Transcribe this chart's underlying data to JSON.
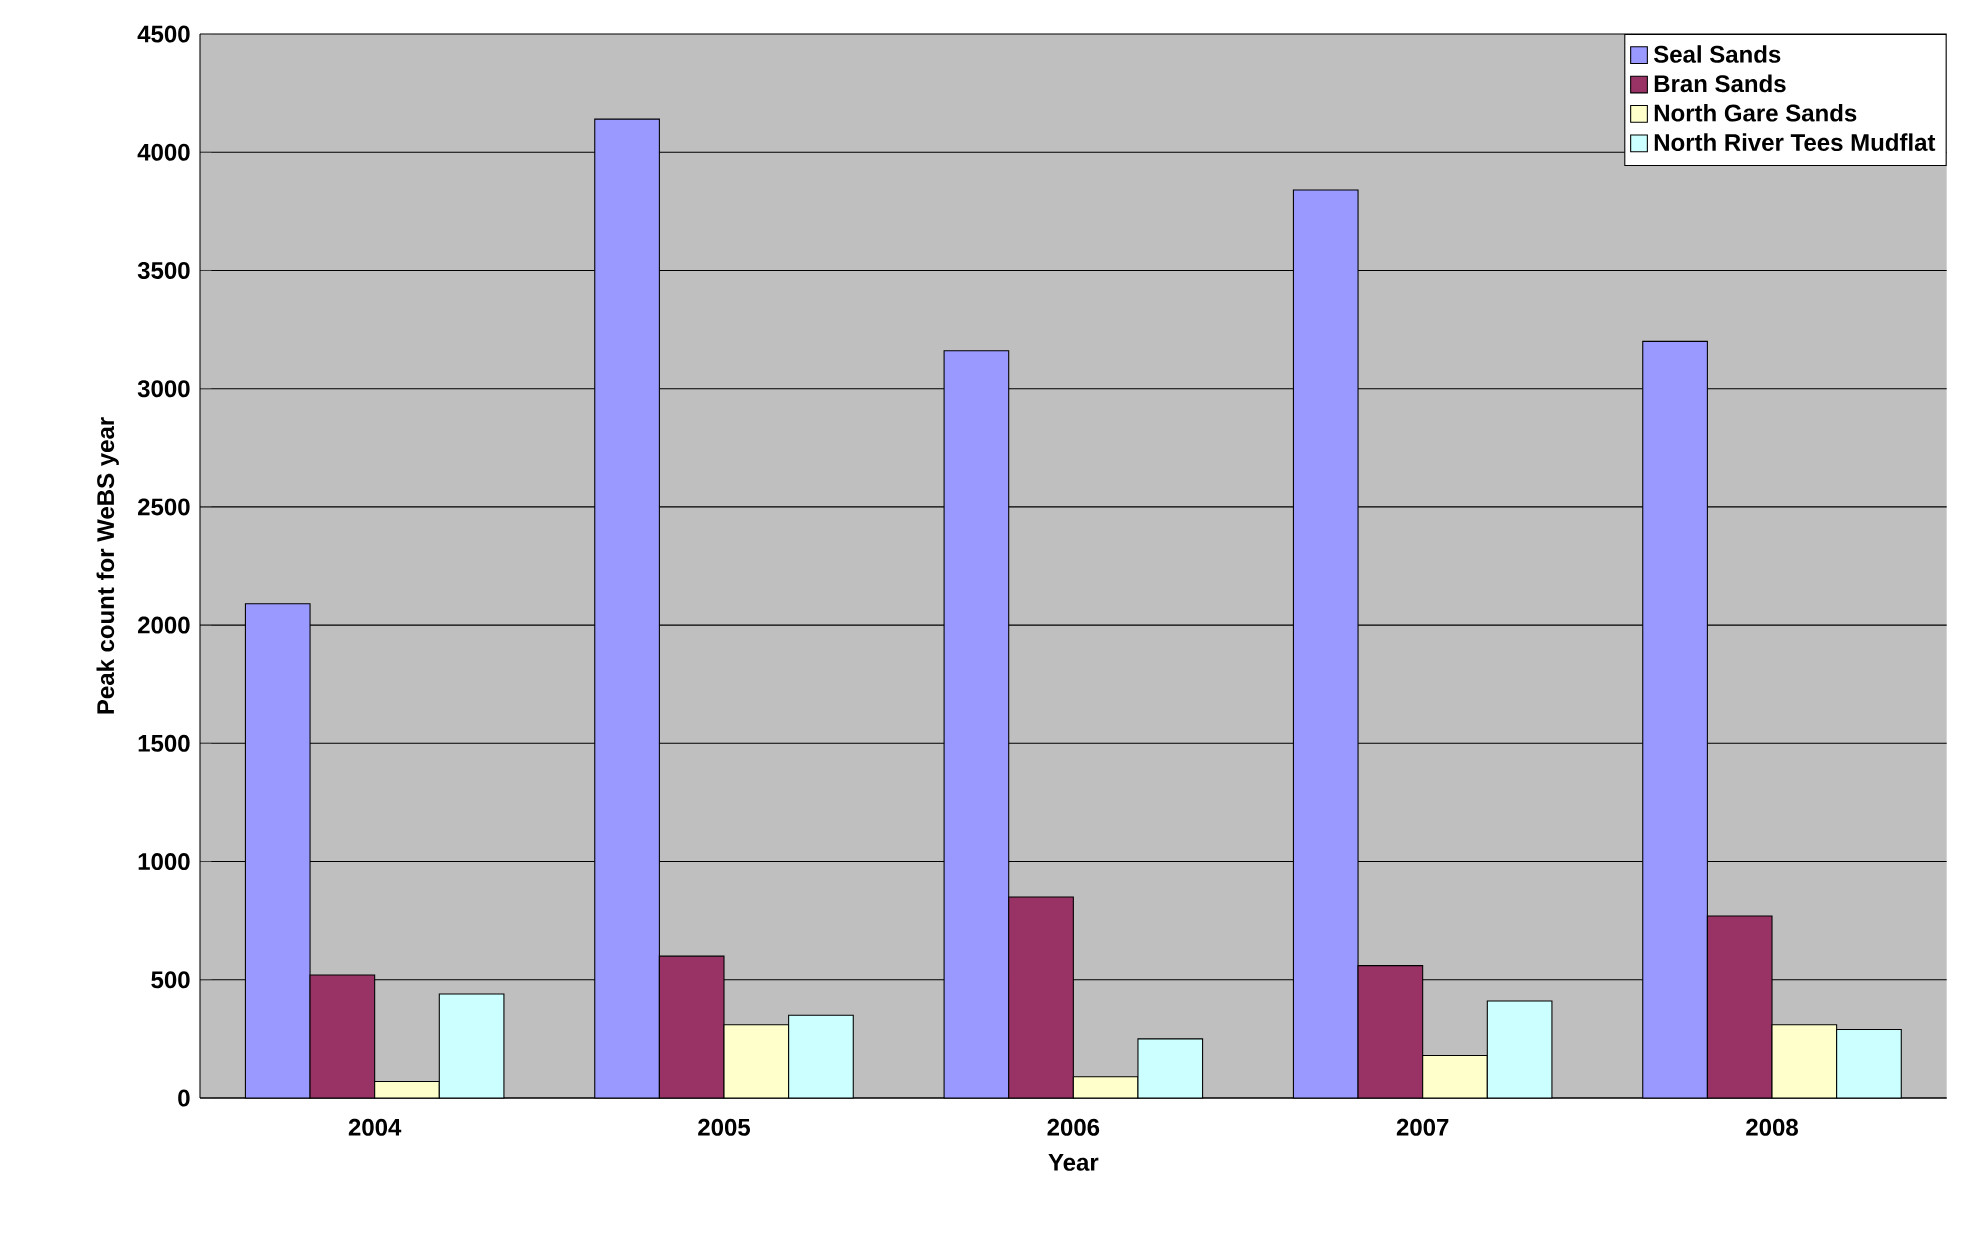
{
  "chart_data": {
    "type": "bar",
    "xlabel": "Year",
    "ylabel": "Peak count for WeBS year",
    "categories": [
      "2004",
      "2005",
      "2006",
      "2007",
      "2008"
    ],
    "series": [
      {
        "name": "Seal Sands",
        "color": "#9999ff",
        "values": [
          2090,
          4140,
          3160,
          3840,
          3200
        ]
      },
      {
        "name": "Bran Sands",
        "color": "#993366",
        "values": [
          520,
          600,
          850,
          560,
          770
        ]
      },
      {
        "name": "North Gare Sands",
        "color": "#ffffcc",
        "values": [
          70,
          310,
          90,
          180,
          310
        ]
      },
      {
        "name": "North River Tees Mudflat",
        "color": "#ccffff",
        "values": [
          440,
          350,
          250,
          410,
          290
        ]
      }
    ],
    "ylim": [
      0,
      4500
    ],
    "yticks": [
      0,
      500,
      1000,
      1500,
      2000,
      2500,
      3000,
      3500,
      4000,
      4500
    ],
    "grid": "y",
    "legend": "top right"
  }
}
